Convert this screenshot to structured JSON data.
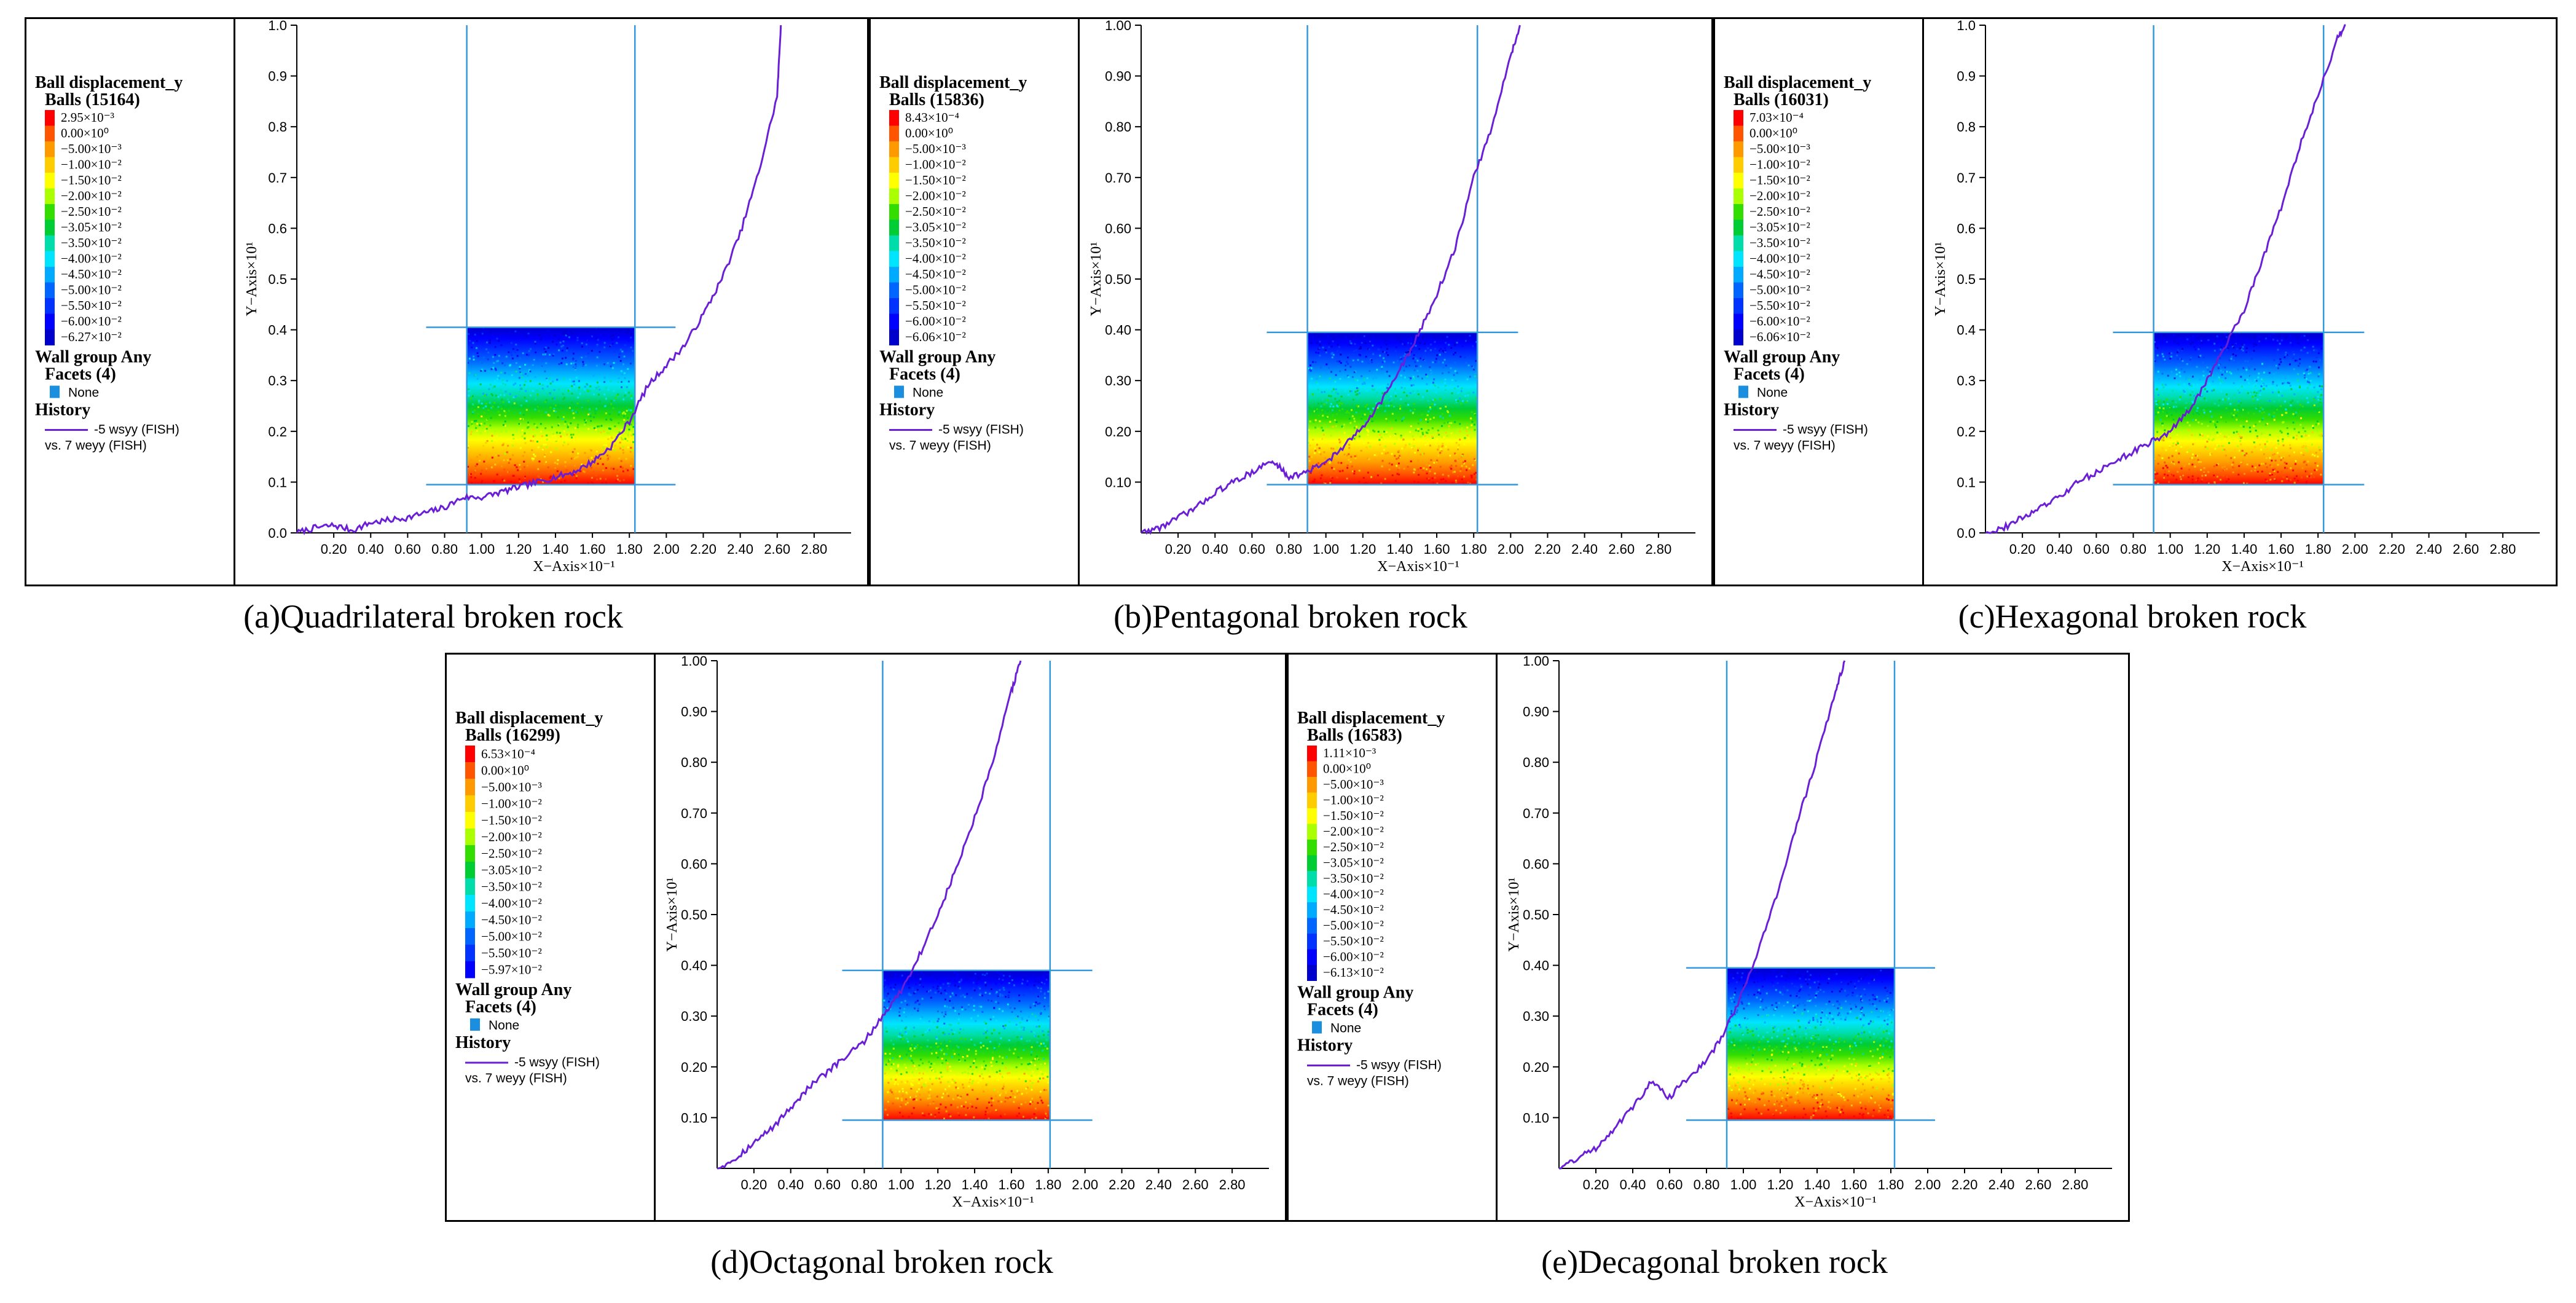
{
  "figure": {
    "legend": {
      "title": "Ball displacement_y",
      "wall_group": "Wall group Any",
      "facets": "Facets (4)",
      "facet_item": "None",
      "history": "History",
      "history_line1": "-5 wsyy (FISH)",
      "history_line2": "vs. 7 weyy (FISH)"
    },
    "x_axis_label": "X−Axis×10⁻¹",
    "y_axis_label": "Y−Axis×10¹",
    "contour_colors": [
      "#ff0000",
      "#ff5500",
      "#ff9900",
      "#ffcc00",
      "#ffff00",
      "#aaff00",
      "#33dd00",
      "#00cc33",
      "#00ddaa",
      "#00e5ff",
      "#00aaff",
      "#0066ff",
      "#0033ff",
      "#0000ff",
      "#0000cc"
    ],
    "wall_color": "#3399dd",
    "history_color": "#6a1ed6",
    "facet_color": "#1a8fe0"
  },
  "chart_data": [
    {
      "type": "line",
      "caption": "(a)Quadrilateral broken rock",
      "balls": "Balls (15164)",
      "contour_labels": [
        "2.95×10⁻³",
        "0.00×10⁰",
        "−5.00×10⁻³",
        "−1.00×10⁻²",
        "−1.50×10⁻²",
        "−2.00×10⁻²",
        "−2.50×10⁻²",
        "−3.05×10⁻²",
        "−3.50×10⁻²",
        "−4.00×10⁻²",
        "−4.50×10⁻²",
        "−5.00×10⁻²",
        "−5.50×10⁻²",
        "−6.00×10⁻²",
        "−6.27×10⁻²"
      ],
      "y_ticks": [
        "0.0",
        "0.1",
        "0.2",
        "0.3",
        "0.4",
        "0.5",
        "0.6",
        "0.7",
        "0.8",
        "0.9",
        "1.0"
      ],
      "x_ticks": [
        "0.20",
        "0.40",
        "0.60",
        "0.80",
        "1.00",
        "1.20",
        "1.40",
        "1.60",
        "1.80",
        "2.00",
        "2.20",
        "2.40",
        "2.60",
        "2.80"
      ],
      "xlim": [
        0,
        3.0
      ],
      "ylim": [
        0,
        1.0
      ],
      "specimen": {
        "x": [
          0.92,
          1.83
        ],
        "y": [
          0.095,
          0.405
        ]
      },
      "walls_horizontal": {
        "y": [
          0.095,
          0.405
        ],
        "x": [
          0.7,
          2.05
        ]
      },
      "walls_vertical": [
        0.92,
        1.83
      ],
      "series": [
        {
          "x": [
            0.0,
            0.1,
            0.2,
            0.3,
            0.4,
            0.5,
            0.6,
            0.7,
            0.8,
            0.9,
            1.0,
            1.1,
            1.2,
            1.3,
            1.4,
            1.5,
            1.6,
            1.7,
            1.8,
            1.9,
            2.0,
            2.1,
            2.2,
            2.3,
            2.4,
            2.5,
            2.6,
            2.62
          ],
          "y": [
            0.0,
            0.01,
            0.015,
            0.005,
            0.02,
            0.025,
            0.03,
            0.04,
            0.05,
            0.07,
            0.07,
            0.08,
            0.09,
            0.1,
            0.11,
            0.12,
            0.14,
            0.17,
            0.22,
            0.29,
            0.33,
            0.37,
            0.43,
            0.5,
            0.59,
            0.71,
            0.86,
            1.0
          ]
        }
      ]
    },
    {
      "type": "line",
      "caption": "(b)Pentagonal broken rock",
      "balls": "Balls (15836)",
      "contour_labels": [
        "8.43×10⁻⁴",
        "0.00×10⁰",
        "−5.00×10⁻³",
        "−1.00×10⁻²",
        "−1.50×10⁻²",
        "−2.00×10⁻²",
        "−2.50×10⁻²",
        "−3.05×10⁻²",
        "−3.50×10⁻²",
        "−4.00×10⁻²",
        "−4.50×10⁻²",
        "−5.00×10⁻²",
        "−5.50×10⁻²",
        "−6.00×10⁻²",
        "−6.06×10⁻²"
      ],
      "y_ticks": [
        "0.10",
        "0.20",
        "0.30",
        "0.40",
        "0.50",
        "0.60",
        "0.70",
        "0.80",
        "0.90",
        "1.00"
      ],
      "x_ticks": [
        "0.20",
        "0.40",
        "0.60",
        "0.80",
        "1.00",
        "1.20",
        "1.40",
        "1.60",
        "1.80",
        "2.00",
        "2.20",
        "2.40",
        "2.60",
        "2.80"
      ],
      "xlim": [
        0,
        3.0
      ],
      "ylim": [
        0,
        1.0
      ],
      "specimen": {
        "x": [
          0.9,
          1.82
        ],
        "y": [
          0.095,
          0.395
        ]
      },
      "walls_horizontal": {
        "y": [
          0.095,
          0.395
        ],
        "x": [
          0.68,
          2.04
        ]
      },
      "walls_vertical": [
        0.9,
        1.82
      ],
      "series": [
        {
          "x": [
            0.0,
            0.1,
            0.2,
            0.3,
            0.4,
            0.5,
            0.6,
            0.7,
            0.75,
            0.8,
            0.9,
            1.0,
            1.1,
            1.2,
            1.3,
            1.4,
            1.5,
            1.6,
            1.7,
            1.8,
            1.9,
            2.0,
            2.05
          ],
          "y": [
            0.0,
            0.01,
            0.03,
            0.05,
            0.08,
            0.1,
            0.12,
            0.14,
            0.13,
            0.11,
            0.12,
            0.14,
            0.17,
            0.21,
            0.26,
            0.32,
            0.39,
            0.47,
            0.56,
            0.7,
            0.8,
            0.94,
            1.0
          ]
        }
      ]
    },
    {
      "type": "line",
      "caption": "(c)Hexagonal broken rock",
      "balls": "Balls (16031)",
      "contour_labels": [
        "7.03×10⁻⁴",
        "0.00×10⁰",
        "−5.00×10⁻³",
        "−1.00×10⁻²",
        "−1.50×10⁻²",
        "−2.00×10⁻²",
        "−2.50×10⁻²",
        "−3.05×10⁻²",
        "−3.50×10⁻²",
        "−4.00×10⁻²",
        "−4.50×10⁻²",
        "−5.00×10⁻²",
        "−5.50×10⁻²",
        "−6.00×10⁻²",
        "−6.06×10⁻²"
      ],
      "y_ticks": [
        "0.0",
        "0.1",
        "0.2",
        "0.3",
        "0.4",
        "0.5",
        "0.6",
        "0.7",
        "0.8",
        "0.9",
        "1.0"
      ],
      "x_ticks": [
        "0.20",
        "0.40",
        "0.60",
        "0.80",
        "1.00",
        "1.20",
        "1.40",
        "1.60",
        "1.80",
        "2.00",
        "2.20",
        "2.40",
        "2.60",
        "2.80"
      ],
      "xlim": [
        0,
        3.0
      ],
      "ylim": [
        0,
        1.0
      ],
      "specimen": {
        "x": [
          0.91,
          1.83
        ],
        "y": [
          0.095,
          0.395
        ]
      },
      "walls_horizontal": {
        "y": [
          0.095,
          0.395
        ],
        "x": [
          0.69,
          2.05
        ]
      },
      "walls_vertical": [
        0.91,
        1.83
      ],
      "series": [
        {
          "x": [
            0.0,
            0.1,
            0.2,
            0.3,
            0.4,
            0.5,
            0.6,
            0.7,
            0.8,
            0.9,
            1.0,
            1.1,
            1.2,
            1.3,
            1.4,
            1.5,
            1.6,
            1.7,
            1.8,
            1.9,
            1.95
          ],
          "y": [
            0.0,
            0.01,
            0.03,
            0.05,
            0.07,
            0.1,
            0.12,
            0.14,
            0.16,
            0.18,
            0.2,
            0.24,
            0.3,
            0.37,
            0.44,
            0.54,
            0.64,
            0.76,
            0.86,
            0.97,
            1.0
          ]
        }
      ]
    },
    {
      "type": "line",
      "caption": "(d)Octagonal broken rock",
      "balls": "Balls (16299)",
      "contour_labels": [
        "6.53×10⁻⁴",
        "0.00×10⁰",
        "−5.00×10⁻³",
        "−1.00×10⁻²",
        "−1.50×10⁻²",
        "−2.00×10⁻²",
        "−2.50×10⁻²",
        "−3.05×10⁻²",
        "−3.50×10⁻²",
        "−4.00×10⁻²",
        "−4.50×10⁻²",
        "−5.00×10⁻²",
        "−5.50×10⁻²",
        "−5.97×10⁻²"
      ],
      "y_ticks": [
        "0.10",
        "0.20",
        "0.30",
        "0.40",
        "0.50",
        "0.60",
        "0.70",
        "0.80",
        "0.90",
        "1.00"
      ],
      "x_ticks": [
        "0.20",
        "0.40",
        "0.60",
        "0.80",
        "1.00",
        "1.20",
        "1.40",
        "1.60",
        "1.80",
        "2.00",
        "2.20",
        "2.40",
        "2.60",
        "2.80"
      ],
      "xlim": [
        0,
        3.0
      ],
      "ylim": [
        0,
        1.0
      ],
      "specimen": {
        "x": [
          0.9,
          1.81
        ],
        "y": [
          0.095,
          0.39
        ]
      },
      "walls_horizontal": {
        "y": [
          0.095,
          0.39
        ],
        "x": [
          0.68,
          2.04
        ]
      },
      "walls_vertical": [
        0.9,
        1.81
      ],
      "series": [
        {
          "x": [
            0.0,
            0.1,
            0.2,
            0.3,
            0.4,
            0.5,
            0.6,
            0.7,
            0.8,
            0.9,
            1.0,
            1.1,
            1.2,
            1.3,
            1.4,
            1.5,
            1.6,
            1.65
          ],
          "y": [
            0.0,
            0.02,
            0.05,
            0.08,
            0.12,
            0.16,
            0.19,
            0.22,
            0.25,
            0.3,
            0.35,
            0.42,
            0.5,
            0.59,
            0.69,
            0.8,
            0.94,
            1.0
          ]
        }
      ]
    },
    {
      "type": "line",
      "caption": "(e)Decagonal broken rock",
      "balls": "Balls (16583)",
      "contour_labels": [
        "1.11×10⁻³",
        "0.00×10⁰",
        "−5.00×10⁻³",
        "−1.00×10⁻²",
        "−1.50×10⁻²",
        "−2.00×10⁻²",
        "−2.50×10⁻²",
        "−3.05×10⁻²",
        "−3.50×10⁻²",
        "−4.00×10⁻²",
        "−4.50×10⁻²",
        "−5.00×10⁻²",
        "−5.50×10⁻²",
        "−6.00×10⁻²",
        "−6.13×10⁻²"
      ],
      "y_ticks": [
        "0.10",
        "0.20",
        "0.30",
        "0.40",
        "0.50",
        "0.60",
        "0.70",
        "0.80",
        "0.90",
        "1.00"
      ],
      "x_ticks": [
        "0.20",
        "0.40",
        "0.60",
        "0.80",
        "1.00",
        "1.20",
        "1.40",
        "1.60",
        "1.80",
        "2.00",
        "2.20",
        "2.40",
        "2.60",
        "2.80"
      ],
      "xlim": [
        0,
        3.0
      ],
      "ylim": [
        0,
        1.0
      ],
      "specimen": {
        "x": [
          0.91,
          1.82
        ],
        "y": [
          0.095,
          0.395
        ]
      },
      "walls_horizontal": {
        "y": [
          0.095,
          0.395
        ],
        "x": [
          0.69,
          2.04
        ]
      },
      "walls_vertical": [
        0.91,
        1.82
      ],
      "series": [
        {
          "x": [
            0.0,
            0.1,
            0.2,
            0.3,
            0.4,
            0.5,
            0.6,
            0.7,
            0.8,
            0.9,
            1.0,
            1.1,
            1.2,
            1.3,
            1.4,
            1.5,
            1.55
          ],
          "y": [
            0.0,
            0.02,
            0.04,
            0.08,
            0.12,
            0.17,
            0.14,
            0.18,
            0.21,
            0.27,
            0.35,
            0.45,
            0.56,
            0.69,
            0.81,
            0.94,
            1.0
          ]
        }
      ]
    }
  ]
}
